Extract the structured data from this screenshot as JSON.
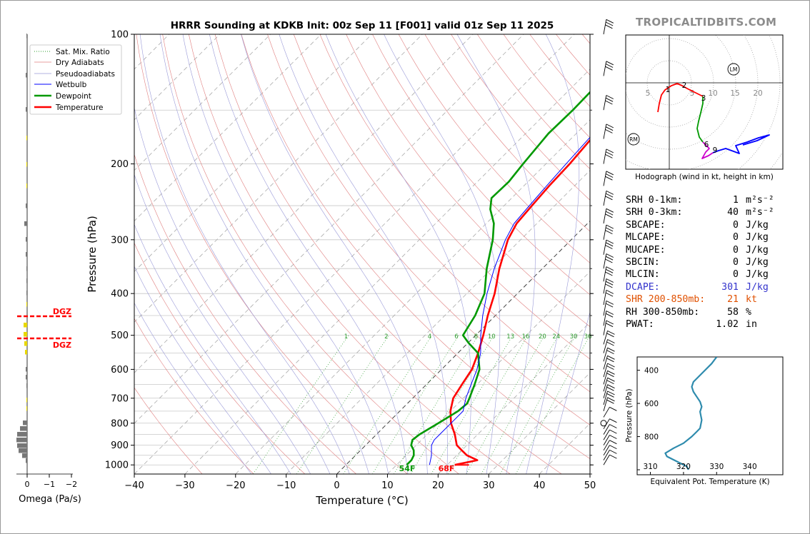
{
  "title": "HRRR Sounding at KDKB Init: 00z Sep 11 [F001] valid 01z Sep 11 2025",
  "watermark": "TROPICALTIDBITS.COM",
  "chart_data": {
    "type": "line",
    "title": "HRRR Sounding at KDKB Init: 00z Sep 11 [F001] valid 01z Sep 11 2025",
    "xlabel": "Temperature (°C)",
    "ylabel": "Pressure (hPa)",
    "xlim": [
      -40,
      50
    ],
    "ylim": [
      1050,
      100
    ],
    "yscale": "log",
    "x_ticks": [
      -40,
      -30,
      -20,
      -10,
      0,
      10,
      20,
      30,
      40,
      50
    ],
    "x_tick_labels": [
      "−40",
      "−30",
      "−20",
      "−10",
      "0",
      "10",
      "20",
      "30",
      "40",
      "50"
    ],
    "y_ticks": [
      1000,
      900,
      800,
      700,
      600,
      500,
      400,
      300,
      200,
      100
    ],
    "legend": {
      "placement": "top-left",
      "entries": [
        "Sat. Mix. Ratio",
        "Dry Adiabats",
        "Pseudoadiabats",
        "Wetbulb",
        "Dewpoint",
        "Temperature"
      ]
    },
    "series": [
      {
        "name": "Temperature",
        "color": "#ff0000",
        "points": [
          [
            1000,
            21.5
          ],
          [
            975,
            25
          ],
          [
            950,
            22
          ],
          [
            925,
            20
          ],
          [
            900,
            18
          ],
          [
            850,
            15.5
          ],
          [
            800,
            12.5
          ],
          [
            750,
            10
          ],
          [
            700,
            8
          ],
          [
            650,
            7
          ],
          [
            600,
            6
          ],
          [
            550,
            4
          ],
          [
            500,
            1.5
          ],
          [
            450,
            -1.5
          ],
          [
            400,
            -4.5
          ],
          [
            350,
            -8.5
          ],
          [
            300,
            -12.5
          ],
          [
            275,
            -14
          ],
          [
            250,
            -14.5
          ],
          [
            225,
            -15
          ],
          [
            200,
            -15.3
          ],
          [
            175,
            -16
          ],
          [
            150,
            -16.5
          ],
          [
            130,
            -14
          ],
          [
            120,
            -12.5
          ],
          [
            100,
            -9.5
          ]
        ]
      },
      {
        "name": "Dewpoint",
        "color": "#009900",
        "points": [
          [
            1000,
            12
          ],
          [
            975,
            12
          ],
          [
            950,
            11.5
          ],
          [
            925,
            10.5
          ],
          [
            900,
            9
          ],
          [
            875,
            8.2
          ],
          [
            850,
            8.5
          ],
          [
            800,
            10
          ],
          [
            750,
            11.5
          ],
          [
            720,
            11.8
          ],
          [
            700,
            11.2
          ],
          [
            650,
            9.5
          ],
          [
            600,
            7.5
          ],
          [
            550,
            4
          ],
          [
            520,
            0
          ],
          [
            500,
            -2.5
          ],
          [
            450,
            -4
          ],
          [
            400,
            -6.5
          ],
          [
            350,
            -11
          ],
          [
            300,
            -15.5
          ],
          [
            275,
            -18.5
          ],
          [
            255,
            -22
          ],
          [
            240,
            -24
          ],
          [
            220,
            -23.8
          ],
          [
            200,
            -24.5
          ],
          [
            170,
            -25.5
          ],
          [
            150,
            -25.3
          ],
          [
            130,
            -25.5
          ],
          [
            100,
            -21
          ]
        ]
      },
      {
        "name": "Wetbulb",
        "color": "#0000ff",
        "points": [
          [
            1000,
            16.5
          ],
          [
            950,
            15
          ],
          [
            925,
            14
          ],
          [
            900,
            13
          ],
          [
            875,
            12.5
          ],
          [
            850,
            12.5
          ],
          [
            800,
            12.5
          ],
          [
            750,
            12.5
          ],
          [
            700,
            10.5
          ],
          [
            650,
            8.8
          ],
          [
            600,
            7
          ],
          [
            550,
            4.5
          ],
          [
            500,
            1
          ],
          [
            450,
            -2.5
          ],
          [
            400,
            -6
          ],
          [
            350,
            -9.5
          ],
          [
            300,
            -13
          ],
          [
            275,
            -14.5
          ],
          [
            250,
            -15
          ],
          [
            225,
            -15.5
          ],
          [
            200,
            -16
          ],
          [
            175,
            -16.5
          ],
          [
            150,
            -16.8
          ],
          [
            130,
            -14.2
          ],
          [
            100,
            -9.7
          ]
        ]
      }
    ],
    "surface_labels": {
      "dewpoint": "54F",
      "temperature": "68F"
    },
    "mixing_ratio_labels": [
      "1",
      "2",
      "4",
      "6",
      "8",
      "10",
      "13",
      "16",
      "20",
      "24",
      "30",
      "36"
    ],
    "dgz_label": "DGZ",
    "omega": {
      "xlabel": "Omega (Pa/s)",
      "x_ticks": [
        "0",
        "−1",
        "−2"
      ]
    },
    "hodograph": {
      "caption": "Hodograph (wind in kt, height in km)",
      "ring_labels": [
        "5",
        "5",
        "10",
        "15",
        "20"
      ],
      "height_labels": [
        "1",
        "2",
        "3",
        "6",
        "9"
      ],
      "markers": [
        "LM",
        "RM"
      ]
    },
    "theta_e": {
      "xlabel": "Equivalent Pot. Temperature (K)",
      "ylabel": "Pressure (hPa)",
      "x_ticks": [
        "310",
        "320",
        "330",
        "340"
      ],
      "y_ticks": [
        "400",
        "600",
        "800"
      ],
      "xlim": [
        306,
        350
      ],
      "ylim": [
        1030,
        320
      ],
      "color": "#2e8bad",
      "points": [
        [
          1000,
          321.5
        ],
        [
          980,
          321
        ],
        [
          950,
          318
        ],
        [
          920,
          315
        ],
        [
          900,
          314.5
        ],
        [
          870,
          317
        ],
        [
          840,
          320
        ],
        [
          800,
          322.5
        ],
        [
          770,
          324
        ],
        [
          750,
          325
        ],
        [
          700,
          325.5
        ],
        [
          650,
          325
        ],
        [
          620,
          325.5
        ],
        [
          590,
          325
        ],
        [
          560,
          324
        ],
        [
          530,
          323
        ],
        [
          500,
          322.5
        ],
        [
          470,
          323
        ],
        [
          440,
          324.5
        ],
        [
          400,
          326.5
        ],
        [
          360,
          328.5
        ],
        [
          320,
          330
        ]
      ]
    }
  },
  "stats": [
    {
      "label": "SRH 0-1km:",
      "value": "1",
      "unit": "m²s⁻²",
      "color": "#000000"
    },
    {
      "label": "SRH 0-3km:",
      "value": "40",
      "unit": "m²s⁻²",
      "color": "#000000"
    },
    {
      "label": "SBCAPE:",
      "value": "0",
      "unit": "J/kg",
      "color": "#000000"
    },
    {
      "label": "MLCAPE:",
      "value": "0",
      "unit": "J/kg",
      "color": "#000000"
    },
    {
      "label": "MUCAPE:",
      "value": "0",
      "unit": "J/kg",
      "color": "#000000"
    },
    {
      "label": "SBCIN:",
      "value": "0",
      "unit": "J/kg",
      "color": "#000000"
    },
    {
      "label": "MLCIN:",
      "value": "0",
      "unit": "J/kg",
      "color": "#000000"
    },
    {
      "label": "DCAPE:",
      "value": "301",
      "unit": "J/kg",
      "color": "#3333cc"
    },
    {
      "label": "SHR 200-850mb:",
      "value": "21",
      "unit": "kt",
      "color": "#e05000"
    },
    {
      "label": "RH 300-850mb:",
      "value": "58",
      "unit": "%",
      "color": "#000000"
    },
    {
      "label": "PWAT:",
      "value": "1.02",
      "unit": "in",
      "color": "#000000"
    }
  ]
}
